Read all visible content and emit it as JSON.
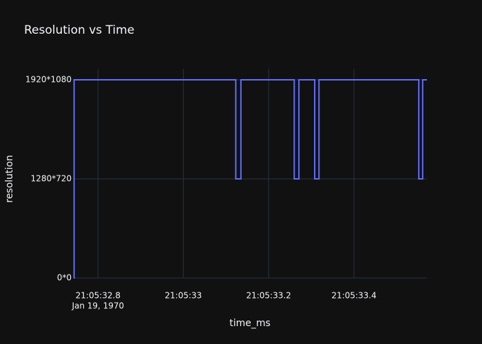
{
  "chart_data": {
    "type": "line",
    "title": "Resolution vs Time",
    "x_label": "time_ms",
    "y_label": "resolution",
    "line_shape": "hv",
    "x_date_label": "Jan 19, 1970",
    "xlim": [
      1631132743,
      1631133571
    ],
    "xticks": [
      {
        "value": 1631132800,
        "label": "21:05:32.8"
      },
      {
        "value": 1631133000,
        "label": "21:05:33"
      },
      {
        "value": 1631133200,
        "label": "21:05:33.2"
      },
      {
        "value": 1631133400,
        "label": "21:05:33.4"
      }
    ],
    "y_categories": [
      "0*0",
      "1280*720",
      "1920*1080"
    ],
    "grid": true,
    "series": [
      {
        "name": "resolution",
        "color": "#636efa",
        "x": [
          1631132743,
          1631132744,
          1631133123,
          1631133135,
          1631133260,
          1631133271,
          1631133308,
          1631133318,
          1631133552,
          1631133561,
          1631133571
        ],
        "values": [
          "0*0",
          "1920*1080",
          "1280*720",
          "1920*1080",
          "1280*720",
          "1920*1080",
          "1280*720",
          "1920*1080",
          "1280*720",
          "1920*1080",
          "1920*1080"
        ]
      }
    ]
  }
}
